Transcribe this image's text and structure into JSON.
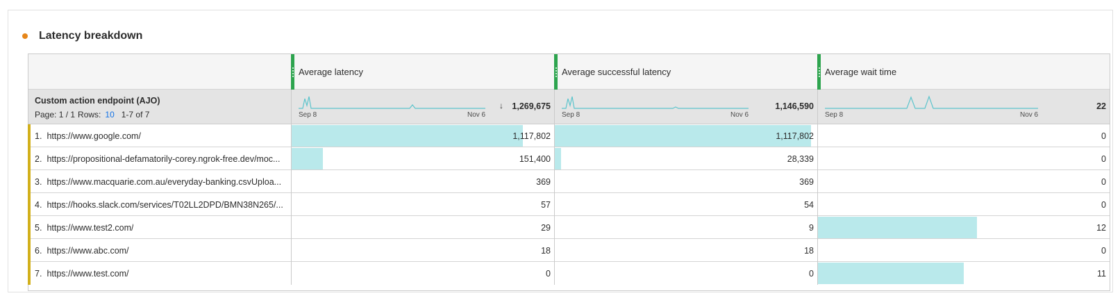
{
  "panel": {
    "title": "Latency breakdown",
    "dot_color": "#e68619"
  },
  "dimension": {
    "title": "Custom action endpoint (AJO)",
    "page_text": "Page: 1 / 1",
    "rows_label": "Rows:",
    "rows_value": "10",
    "range_text": "1-7 of 7"
  },
  "columns": [
    {
      "label": "Average latency",
      "total": "1,269,675",
      "sorted": true,
      "spark_start": "Sep 8",
      "spark_end": "Nov 6",
      "spark_icon": "sort-descending-icon"
    },
    {
      "label": "Average successful latency",
      "total": "1,146,590",
      "sorted": false,
      "spark_start": "Sep 8",
      "spark_end": "Nov 6"
    },
    {
      "label": "Average wait time",
      "total": "22",
      "sorted": false,
      "spark_start": "Sep 8",
      "spark_end": "Nov 6"
    }
  ],
  "rows": [
    {
      "num": "1.",
      "label": "https://www.google.com/",
      "values": [
        "1,117,802",
        "1,117,802",
        "0"
      ],
      "raw": [
        1117802,
        1117802,
        0
      ]
    },
    {
      "num": "2.",
      "label": "https://propositional-defamatorily-corey.ngrok-free.dev/moc...",
      "values": [
        "151,400",
        "28,339",
        "0"
      ],
      "raw": [
        151400,
        28339,
        0
      ]
    },
    {
      "num": "3.",
      "label": "https://www.macquarie.com.au/everyday-banking.csvUploa...",
      "values": [
        "369",
        "369",
        "0"
      ],
      "raw": [
        369,
        369,
        0
      ]
    },
    {
      "num": "4.",
      "label": "https://hooks.slack.com/services/T02LL2DPD/BMN38N265/...",
      "values": [
        "57",
        "54",
        "0"
      ],
      "raw": [
        57,
        54,
        0
      ]
    },
    {
      "num": "5.",
      "label": "https://www.test2.com/",
      "values": [
        "29",
        "9",
        "12"
      ],
      "raw": [
        29,
        9,
        12
      ]
    },
    {
      "num": "6.",
      "label": "https://www.abc.com/",
      "values": [
        "18",
        "18",
        "0"
      ],
      "raw": [
        18,
        18,
        0
      ]
    },
    {
      "num": "7.",
      "label": "https://www.test.com/",
      "values": [
        "0",
        "0",
        "11"
      ],
      "raw": [
        0,
        0,
        11
      ]
    }
  ],
  "column_max": [
    1269675,
    1146590,
    22
  ],
  "colors": {
    "bar": "#b9e9eb",
    "spark": "#5cc4cc",
    "row_marker": "#d2b01b",
    "column_grip": "#2da44e",
    "rows_link": "#1473e6"
  }
}
